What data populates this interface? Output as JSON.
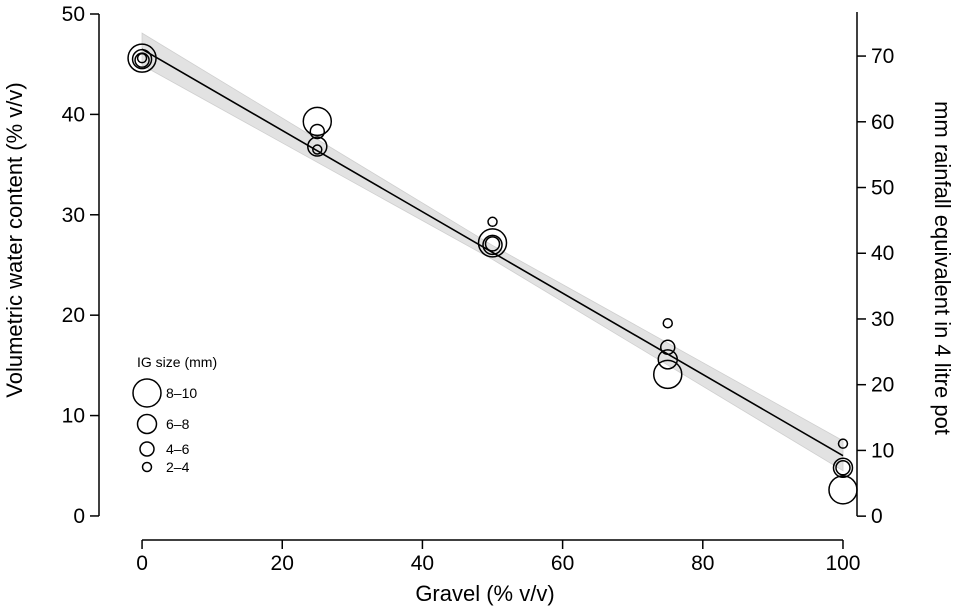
{
  "chart_data": {
    "type": "scatter",
    "xlabel": "Gravel (% v/v)",
    "ylabel": "Volumetric water content (% v/v)",
    "y2label": "mm rainfall equivalent in 4 litre pot",
    "xlim": [
      -6,
      102
    ],
    "ylim": [
      -1,
      50
    ],
    "y2lim": [
      -1.5,
      76.4
    ],
    "xticks": [
      "0",
      "20",
      "40",
      "60",
      "80",
      "100"
    ],
    "yticks": [
      "0",
      "10",
      "20",
      "30",
      "40",
      "50"
    ],
    "y2ticks": [
      "0",
      "10",
      "20",
      "30",
      "40",
      "50",
      "60",
      "70"
    ],
    "grid": false,
    "fit_line": {
      "x": [
        0,
        100
      ],
      "y": [
        46.5,
        6.0
      ],
      "confidence_band": true,
      "band_color": "#e2e2e2"
    },
    "legend": {
      "title": "IG size (mm)",
      "placement": "bottom-left",
      "entries": [
        {
          "label": "8–10",
          "size_class": 4
        },
        {
          "label": "6–8",
          "size_class": 3
        },
        {
          "label": "4–6",
          "size_class": 2
        },
        {
          "label": "2–4",
          "size_class": 1
        }
      ]
    },
    "series": [
      {
        "size_class": 4,
        "points": [
          {
            "x": 0,
            "y": 45.6
          },
          {
            "x": 25,
            "y": 39.3
          },
          {
            "x": 50,
            "y": 27.2
          },
          {
            "x": 75,
            "y": 14.1
          },
          {
            "x": 100,
            "y": 2.6
          }
        ]
      },
      {
        "size_class": 3,
        "points": [
          {
            "x": 0,
            "y": 45.5
          },
          {
            "x": 25,
            "y": 36.8
          },
          {
            "x": 50,
            "y": 27.0
          },
          {
            "x": 75,
            "y": 15.6
          },
          {
            "x": 100,
            "y": 4.8
          }
        ]
      },
      {
        "size_class": 2,
        "points": [
          {
            "x": 0,
            "y": 45.4
          },
          {
            "x": 25,
            "y": 38.3
          },
          {
            "x": 50,
            "y": 27.1
          },
          {
            "x": 75,
            "y": 16.8
          },
          {
            "x": 100,
            "y": 4.8
          }
        ]
      },
      {
        "size_class": 1,
        "points": [
          {
            "x": 0,
            "y": 45.6
          },
          {
            "x": 25,
            "y": 36.5
          },
          {
            "x": 50,
            "y": 29.3
          },
          {
            "x": 75,
            "y": 19.2
          },
          {
            "x": 100,
            "y": 7.2
          }
        ]
      }
    ]
  }
}
